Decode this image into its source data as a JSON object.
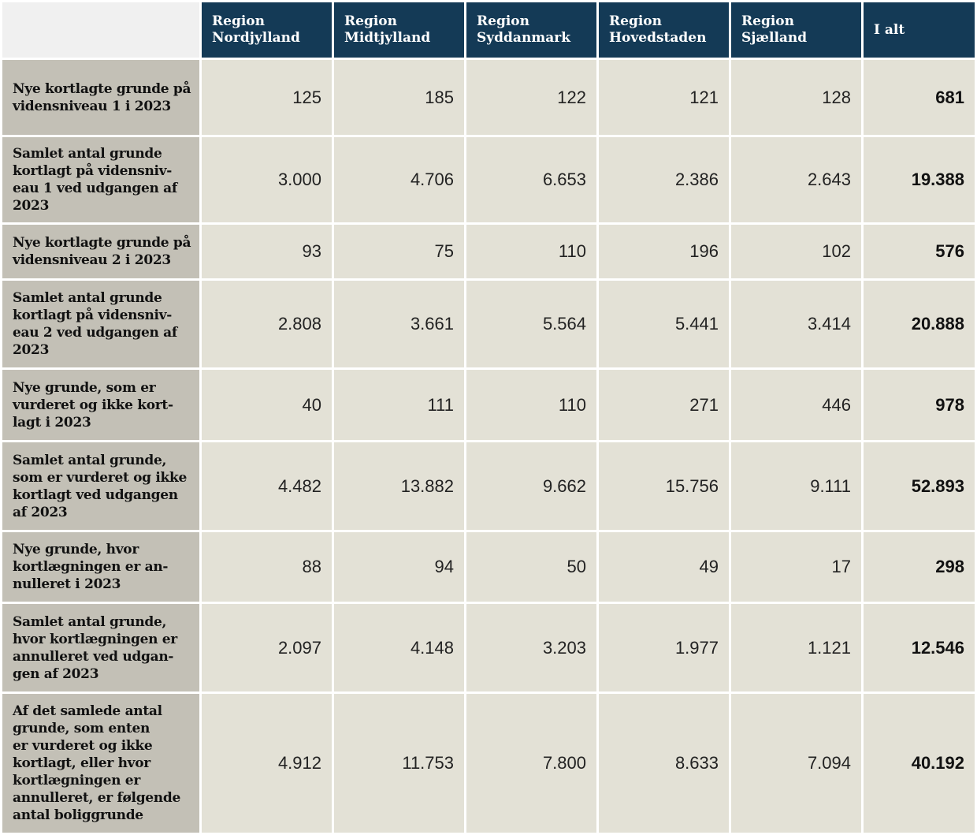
{
  "table": {
    "columns": [
      "Region\nNordjylland",
      "Region\nMidtjylland",
      "Region\nSyddanmark",
      "Region\nHovedstaden",
      "Region\nSjælland",
      "I alt"
    ],
    "rows": [
      {
        "label": "Nye kortlagte grunde på\nvidensniveau 1 i 2023",
        "values": [
          "125",
          "185",
          "122",
          "121",
          "128",
          "681"
        ]
      },
      {
        "label": "Samlet antal grunde\nkortlagt på vidensniv-\neau 1 ved udgangen af\n2023",
        "values": [
          "3.000",
          "4.706",
          "6.653",
          "2.386",
          "2.643",
          "19.388"
        ]
      },
      {
        "label": "Nye kortlagte grunde på\nvidensniveau 2 i 2023",
        "values": [
          "93",
          "75",
          "110",
          "196",
          "102",
          "576"
        ]
      },
      {
        "label": "Samlet antal grunde\nkortlagt på vidensniv-\neau 2 ved udgangen af\n2023",
        "values": [
          "2.808",
          "3.661",
          "5.564",
          "5.441",
          "3.414",
          "20.888"
        ]
      },
      {
        "label": "Nye grunde, som er\nvurderet og ikke kort-\nlagt i 2023",
        "values": [
          "40",
          "111",
          "110",
          "271",
          "446",
          "978"
        ]
      },
      {
        "label": "Samlet antal grunde,\nsom er vurderet og ikke\nkortlagt ved udgangen\naf 2023",
        "values": [
          "4.482",
          "13.882",
          "9.662",
          "15.756",
          "9.111",
          "52.893"
        ]
      },
      {
        "label": "Nye grunde, hvor\nkortlægningen er an-\nnulleret i 2023",
        "values": [
          "88",
          "94",
          "50",
          "49",
          "17",
          "298"
        ]
      },
      {
        "label": "Samlet antal grunde,\nhvor kortlægningen er\nannulleret ved udgan-\ngen af 2023",
        "values": [
          "2.097",
          "4.148",
          "3.203",
          "1.977",
          "1.121",
          "12.546"
        ]
      },
      {
        "label": "Af det samlede antal\ngrunde, som enten\ner vurderet og ikke\nkortlagt, eller hvor\nkortlægningen er\nannulleret, er følgende\nantal boliggrunde",
        "values": [
          "4.912",
          "11.753",
          "7.800",
          "8.633",
          "7.094",
          "40.192"
        ]
      }
    ]
  }
}
